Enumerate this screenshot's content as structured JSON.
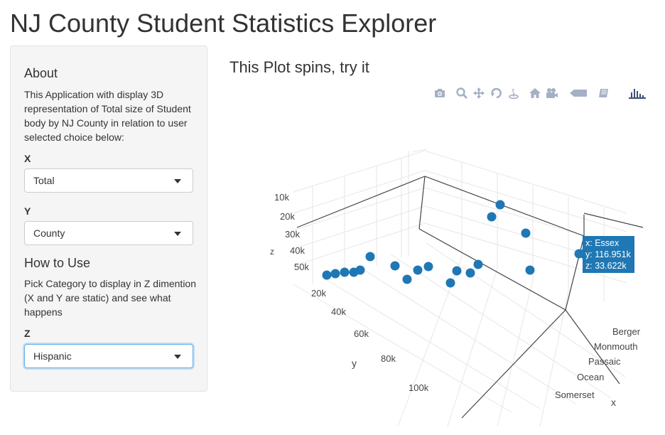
{
  "page": {
    "title": "NJ County Student Statistics Explorer"
  },
  "sidebar": {
    "about_heading": "About",
    "about_text": "This Application with display 3D representation of Total size of Student body by NJ County in relation to user selected choice below:",
    "x_label": "X",
    "x_value": "Total",
    "y_label": "Y",
    "y_value": "County",
    "howto_heading": "How to Use",
    "howto_text": "Pick Category to display in Z dimention (X and Y are static) and see what happens",
    "z_label": "Z",
    "z_value": "Hispanic"
  },
  "main": {
    "heading": "This Plot spins, try it"
  },
  "modebar": {
    "icons": [
      "camera-icon",
      "zoom-icon",
      "pan-icon",
      "orbit-rotation-icon",
      "turntable-rotation-icon",
      "reset-camera-icon",
      "camera-last-save-icon",
      "hover-closest-icon",
      "toggle-spike-lines-icon",
      "plotly-logo-icon"
    ],
    "color": "#a4b0c5",
    "logo_color": "#3f4f75"
  },
  "chart_data": {
    "type": "scatter3d",
    "marker_color": "#1f77b4",
    "axes": {
      "x": {
        "title": "x",
        "tick_labels": [
          "Berger",
          "Monmouth",
          "Passaic",
          "Ocean",
          "Somerset"
        ]
      },
      "y": {
        "title": "y",
        "tick_labels": [
          "20k",
          "40k",
          "60k",
          "80k",
          "100k"
        ]
      },
      "z": {
        "title": "z",
        "tick_labels": [
          "10k",
          "20k",
          "30k",
          "40k",
          "50k"
        ]
      }
    },
    "hover": {
      "x": "x: Essex",
      "y": "y: 116.951k",
      "z": "z: 33.622k",
      "bg": "#1f77b4"
    }
  }
}
